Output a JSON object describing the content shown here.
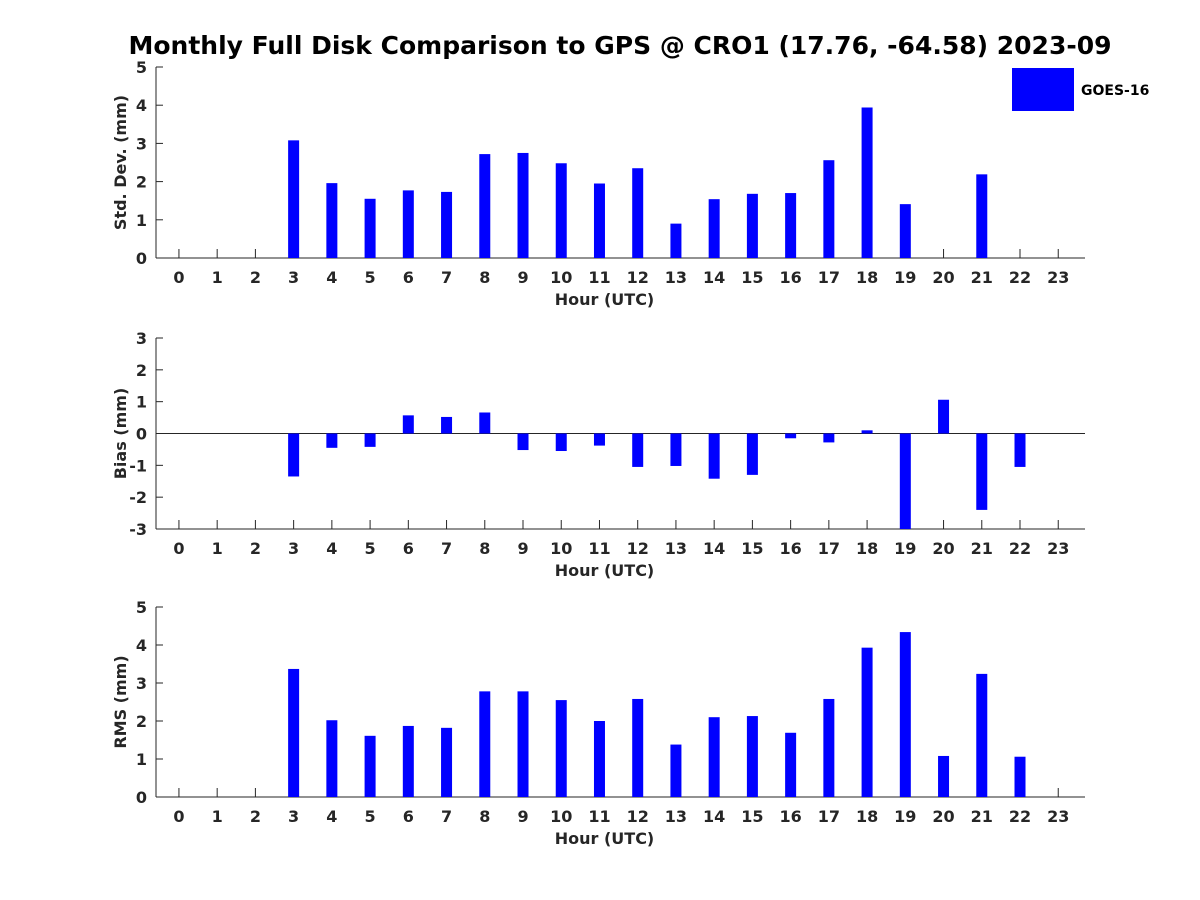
{
  "title": "Monthly Full Disk Comparison to GPS @ CRO1 (17.76, -64.58) 2023-09",
  "bar_color": "#0000ff",
  "legend": {
    "label": "GOES-16",
    "placement": "top-right"
  },
  "chart_data": [
    {
      "type": "bar",
      "series_name": "GOES-16",
      "ylabel": "Std. Dev. (mm)",
      "xlabel": "Hour (UTC)",
      "ylim": [
        0,
        5
      ],
      "yticks": [
        0,
        1,
        2,
        3,
        4,
        5
      ],
      "categories": [
        "0",
        "1",
        "2",
        "3",
        "4",
        "5",
        "6",
        "7",
        "8",
        "9",
        "10",
        "11",
        "12",
        "13",
        "14",
        "15",
        "16",
        "17",
        "18",
        "19",
        "20",
        "21",
        "22",
        "23"
      ],
      "values": [
        null,
        null,
        null,
        3.08,
        1.96,
        1.55,
        1.77,
        1.73,
        2.72,
        2.75,
        2.48,
        1.95,
        2.35,
        0.9,
        1.54,
        1.68,
        1.7,
        2.56,
        3.94,
        1.41,
        null,
        2.19,
        null,
        null
      ]
    },
    {
      "type": "bar",
      "series_name": "GOES-16",
      "ylabel": "Bias (mm)",
      "xlabel": "Hour (UTC)",
      "ylim": [
        -3,
        3
      ],
      "yticks": [
        -3,
        -2,
        -1,
        0,
        1,
        2,
        3
      ],
      "zero_line": true,
      "categories": [
        "0",
        "1",
        "2",
        "3",
        "4",
        "5",
        "6",
        "7",
        "8",
        "9",
        "10",
        "11",
        "12",
        "13",
        "14",
        "15",
        "16",
        "17",
        "18",
        "19",
        "20",
        "21",
        "22",
        "23"
      ],
      "values": [
        null,
        null,
        null,
        -1.35,
        -0.45,
        -0.42,
        0.57,
        0.52,
        0.66,
        -0.52,
        -0.55,
        -0.38,
        -1.05,
        -1.02,
        -1.42,
        -1.3,
        -0.15,
        -0.28,
        0.1,
        -3.0,
        1.06,
        -2.4,
        -1.05,
        null
      ]
    },
    {
      "type": "bar",
      "series_name": "GOES-16",
      "ylabel": "RMS (mm)",
      "xlabel": "Hour (UTC)",
      "ylim": [
        0,
        5
      ],
      "yticks": [
        0,
        1,
        2,
        3,
        4,
        5
      ],
      "categories": [
        "0",
        "1",
        "2",
        "3",
        "4",
        "5",
        "6",
        "7",
        "8",
        "9",
        "10",
        "11",
        "12",
        "13",
        "14",
        "15",
        "16",
        "17",
        "18",
        "19",
        "20",
        "21",
        "22",
        "23"
      ],
      "values": [
        null,
        null,
        null,
        3.37,
        2.02,
        1.61,
        1.87,
        1.82,
        2.78,
        2.78,
        2.55,
        2.0,
        2.58,
        1.38,
        2.1,
        2.13,
        1.69,
        2.58,
        3.93,
        4.34,
        1.08,
        3.24,
        1.06,
        null
      ]
    }
  ]
}
